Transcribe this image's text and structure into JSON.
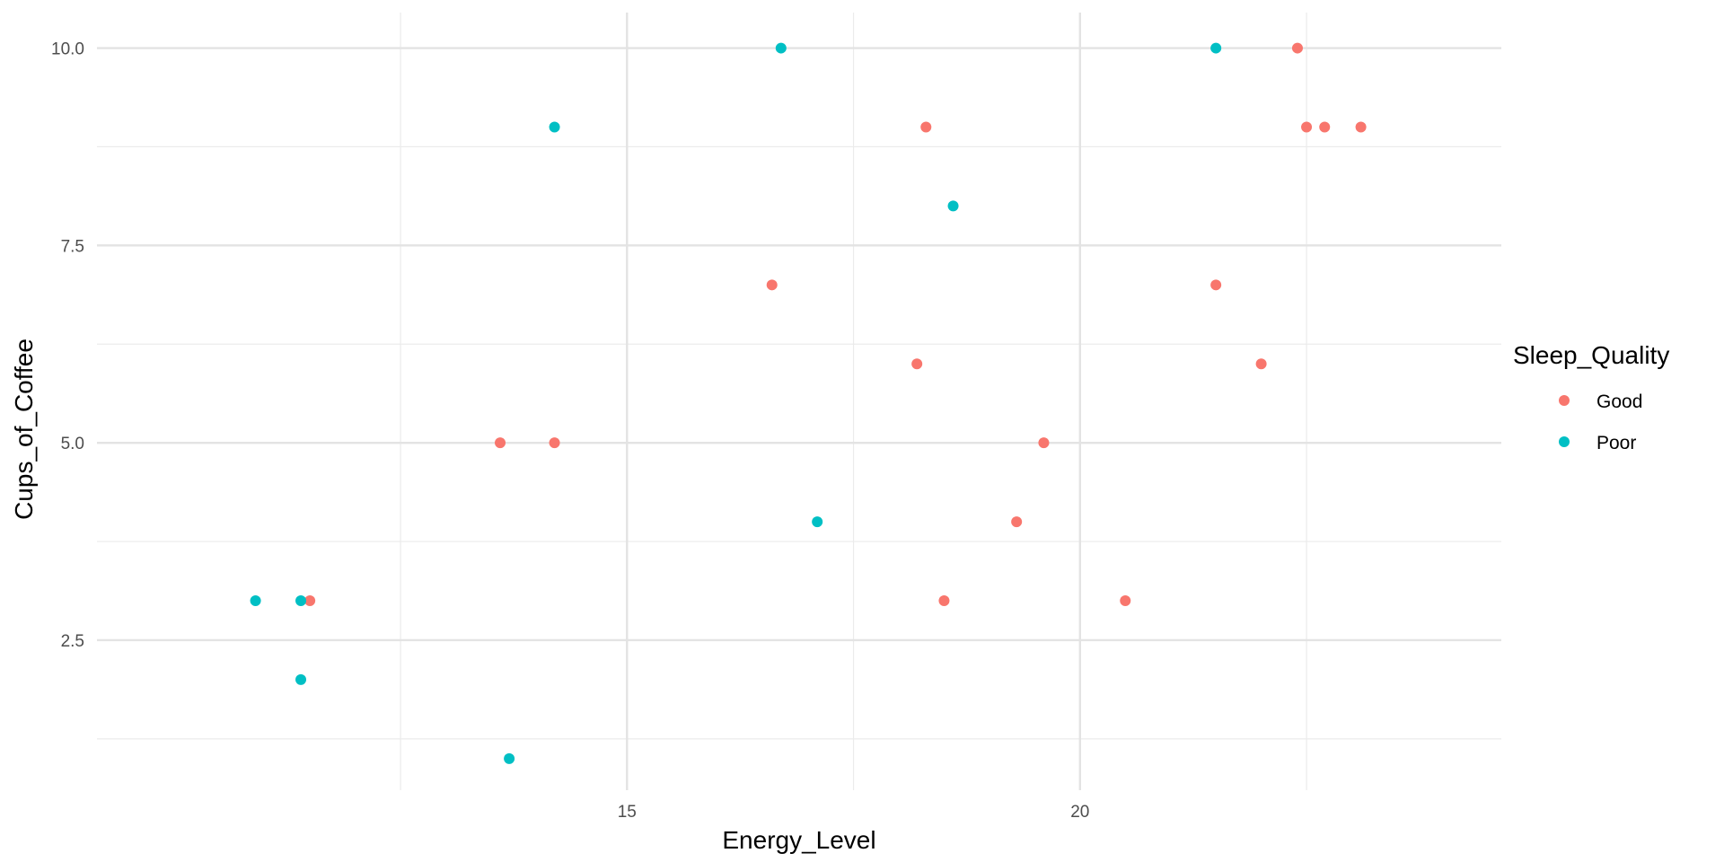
{
  "chart_data": {
    "type": "scatter",
    "title": "",
    "xlabel": "Energy_Level",
    "ylabel": "Cups_of_Coffee",
    "xlim": [
      9.15,
      24.65
    ],
    "ylim": [
      0.6,
      10.45
    ],
    "x_major_ticks": [
      15,
      20
    ],
    "x_minor_gridlines": [
      12.5,
      17.5,
      22.5
    ],
    "y_major_ticks": [
      2.5,
      5.0,
      7.5,
      10.0
    ],
    "y_tick_labels": [
      "2.5",
      "5.0",
      "7.5",
      "10.0"
    ],
    "y_minor_gridlines": [
      1.25,
      3.75,
      6.25,
      8.75
    ],
    "grid": true,
    "legend": {
      "title": "Sleep_Quality",
      "position": "right",
      "entries": [
        "Good",
        "Poor"
      ]
    },
    "series": [
      {
        "name": "Good",
        "color": "#F8766D",
        "points": [
          {
            "x": 11.5,
            "y": 3
          },
          {
            "x": 13.6,
            "y": 5
          },
          {
            "x": 14.2,
            "y": 5
          },
          {
            "x": 16.6,
            "y": 7
          },
          {
            "x": 18.2,
            "y": 6
          },
          {
            "x": 18.3,
            "y": 9
          },
          {
            "x": 18.5,
            "y": 3
          },
          {
            "x": 19.3,
            "y": 4
          },
          {
            "x": 19.6,
            "y": 5
          },
          {
            "x": 20.5,
            "y": 3
          },
          {
            "x": 21.5,
            "y": 7
          },
          {
            "x": 22.0,
            "y": 6
          },
          {
            "x": 22.4,
            "y": 10
          },
          {
            "x": 22.5,
            "y": 9
          },
          {
            "x": 22.7,
            "y": 9
          },
          {
            "x": 23.1,
            "y": 9
          }
        ]
      },
      {
        "name": "Poor",
        "color": "#00BFC4",
        "points": [
          {
            "x": 10.9,
            "y": 3
          },
          {
            "x": 11.4,
            "y": 3
          },
          {
            "x": 11.4,
            "y": 2
          },
          {
            "x": 13.7,
            "y": 1
          },
          {
            "x": 14.2,
            "y": 9
          },
          {
            "x": 16.7,
            "y": 10
          },
          {
            "x": 17.1,
            "y": 4
          },
          {
            "x": 18.6,
            "y": 8
          },
          {
            "x": 21.5,
            "y": 10
          }
        ]
      }
    ]
  }
}
